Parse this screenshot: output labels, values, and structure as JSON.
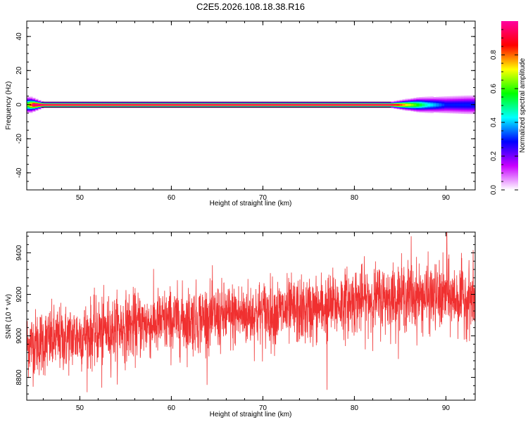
{
  "title": "C2E5.2026.108.18.38.R16",
  "chart_data": [
    {
      "type": "heatmap",
      "xlabel": "Height of straight line (km)",
      "ylabel": "Frequency (Hz)",
      "xlim": [
        44.2,
        93.2
      ],
      "ylim": [
        -50,
        49
      ],
      "x_ticks": [
        50,
        60,
        70,
        80,
        90
      ],
      "y_ticks": [
        40,
        20,
        0,
        -20,
        -40
      ],
      "x_tick_labels": [
        "50",
        "60",
        "70",
        "80",
        "90"
      ],
      "y_tick_labels": [
        "40",
        "20",
        "0",
        "-20",
        "-40"
      ],
      "ridge": {
        "frequency_hz": 0,
        "x_range": [
          44.2,
          93.2
        ],
        "width_hz": [
          {
            "x": 44.5,
            "hz": 4.2
          },
          {
            "x": 46,
            "hz": 1.5
          },
          {
            "x": 84,
            "hz": 1.5
          },
          {
            "x": 87,
            "hz": 4
          },
          {
            "x": 90,
            "hz": 5
          },
          {
            "x": 92.3,
            "hz": 5.5
          }
        ],
        "peak_amplitude": [
          {
            "x": 44.2,
            "amp": 0.6
          },
          {
            "x": 45,
            "amp": 1.0
          },
          {
            "x": 84,
            "amp": 1.0
          },
          {
            "x": 86,
            "amp": 0.7
          },
          {
            "x": 88,
            "amp": 0.45
          },
          {
            "x": 90,
            "amp": 0.3
          },
          {
            "x": 92.3,
            "amp": 0.3
          }
        ]
      },
      "colorbar": {
        "label": "Normalized spectral amplitude",
        "range": [
          0,
          1
        ],
        "ticks": [
          0.0,
          0.2,
          0.4,
          0.6,
          0.8
        ],
        "tick_labels": [
          "0.0",
          "0.2",
          "0.4",
          "0.6",
          "0.8"
        ],
        "colors": [
          "#ffffff",
          "#c800ff",
          "#0000ff",
          "#00ffff",
          "#00ff00",
          "#ffff00",
          "#ff0000",
          "#ff00a0"
        ]
      }
    },
    {
      "type": "line",
      "xlabel": "Height of straight line (km)",
      "ylabel": "SNR (10 * v/v)",
      "xlim": [
        44.2,
        93.2
      ],
      "ylim": [
        8690,
        9500
      ],
      "x_ticks": [
        50,
        60,
        70,
        80,
        90
      ],
      "y_ticks": [
        9400,
        9200,
        9000,
        8800
      ],
      "x_tick_labels": [
        "50",
        "60",
        "70",
        "80",
        "90"
      ],
      "y_tick_labels": [
        "9400",
        "9200",
        "9000",
        "8800"
      ],
      "series": [
        {
          "color": "#f03030",
          "x_range": [
            44.2,
            93.2
          ],
          "trend_x": [
            44.2,
            50,
            55,
            60,
            65,
            70,
            75,
            80,
            85,
            90,
            93.2
          ],
          "trend_y": [
            8960,
            9000,
            9045,
            9070,
            9090,
            9110,
            9120,
            9170,
            9190,
            9185,
            9180
          ],
          "noise_std": 80,
          "spikes": [
            {
              "x": 90.1,
              "y": 9500
            },
            {
              "x": 77.0,
              "y": 8740
            },
            {
              "x": 52.4,
              "y": 8750
            },
            {
              "x": 86.2,
              "y": 9480
            }
          ]
        }
      ]
    }
  ]
}
